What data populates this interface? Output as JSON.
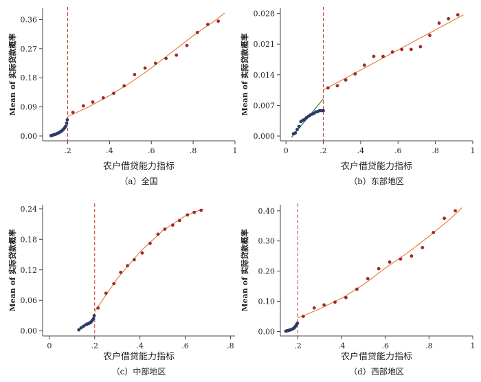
{
  "chart_data": [
    {
      "id": "a",
      "type": "scatter",
      "caption": "（a）全国",
      "xlabel": "农户借贷能力指标",
      "ylabel": "Mean of 实际贷款概率",
      "xlim": [
        0.08,
        1.0
      ],
      "ylim": [
        -0.015,
        0.395
      ],
      "xticks": [
        0.2,
        0.4,
        0.6,
        0.8,
        1.0
      ],
      "xtick_labels": [
        ".2",
        ".4",
        ".6",
        ".8",
        "1"
      ],
      "yticks": [
        0,
        0.09,
        0.18,
        0.27,
        0.36
      ],
      "ytick_labels": [
        "0.00",
        "0.09",
        "0.18",
        "0.27",
        "0.36"
      ],
      "cutoff": 0.2,
      "left_points": [
        [
          0.12,
          0.001
        ],
        [
          0.125,
          0.002
        ],
        [
          0.13,
          0.003
        ],
        [
          0.135,
          0.004
        ],
        [
          0.14,
          0.005
        ],
        [
          0.145,
          0.006
        ],
        [
          0.15,
          0.008
        ],
        [
          0.155,
          0.009
        ],
        [
          0.16,
          0.011
        ],
        [
          0.165,
          0.013
        ],
        [
          0.17,
          0.015
        ],
        [
          0.175,
          0.018
        ],
        [
          0.18,
          0.021
        ],
        [
          0.185,
          0.025
        ],
        [
          0.19,
          0.03
        ],
        [
          0.195,
          0.04
        ],
        [
          0.198,
          0.05
        ]
      ],
      "right_points": [
        [
          0.225,
          0.073
        ],
        [
          0.275,
          0.093
        ],
        [
          0.32,
          0.105
        ],
        [
          0.37,
          0.118
        ],
        [
          0.42,
          0.132
        ],
        [
          0.47,
          0.155
        ],
        [
          0.52,
          0.19
        ],
        [
          0.57,
          0.21
        ],
        [
          0.62,
          0.225
        ],
        [
          0.67,
          0.24
        ],
        [
          0.72,
          0.25
        ],
        [
          0.77,
          0.28
        ],
        [
          0.82,
          0.32
        ],
        [
          0.87,
          0.345
        ],
        [
          0.92,
          0.355
        ]
      ],
      "left_fit": [
        [
          0.12,
          0.0
        ],
        [
          0.16,
          0.012
        ],
        [
          0.2,
          0.04
        ]
      ],
      "right_fit": [
        [
          0.2,
          0.06
        ],
        [
          0.3,
          0.09
        ],
        [
          0.4,
          0.125
        ],
        [
          0.5,
          0.165
        ],
        [
          0.6,
          0.21
        ],
        [
          0.7,
          0.26
        ],
        [
          0.8,
          0.31
        ],
        [
          0.9,
          0.355
        ],
        [
          0.95,
          0.38
        ]
      ]
    },
    {
      "id": "b",
      "type": "scatter",
      "caption": "（b）东部地区",
      "xlabel": "农户借贷能力指标",
      "ylabel": "Mean of 实际贷款概率",
      "xlim": [
        -0.03,
        1.0
      ],
      "ylim": [
        -0.0011,
        0.0292
      ],
      "xticks": [
        0,
        0.2,
        0.4,
        0.6,
        0.8,
        1.0
      ],
      "xtick_labels": [
        "0",
        ".2",
        ".4",
        ".6",
        ".8",
        "1"
      ],
      "yticks": [
        0,
        0.007,
        0.014,
        0.021,
        0.028
      ],
      "ytick_labels": [
        "0.000",
        "0.007",
        "0.014",
        "0.021",
        "0.028"
      ],
      "cutoff": 0.2,
      "left_points": [
        [
          0.04,
          0.0005
        ],
        [
          0.05,
          0.0007
        ],
        [
          0.06,
          0.0015
        ],
        [
          0.07,
          0.0022
        ],
        [
          0.08,
          0.0033
        ],
        [
          0.09,
          0.0036
        ],
        [
          0.1,
          0.0038
        ],
        [
          0.11,
          0.0042
        ],
        [
          0.12,
          0.0045
        ],
        [
          0.13,
          0.0048
        ],
        [
          0.14,
          0.005
        ],
        [
          0.15,
          0.0052
        ],
        [
          0.16,
          0.0055
        ],
        [
          0.17,
          0.0056
        ],
        [
          0.18,
          0.0058
        ],
        [
          0.19,
          0.0058
        ],
        [
          0.2,
          0.0058
        ]
      ],
      "right_points": [
        [
          0.225,
          0.011
        ],
        [
          0.275,
          0.0115
        ],
        [
          0.32,
          0.0128
        ],
        [
          0.37,
          0.0142
        ],
        [
          0.42,
          0.0162
        ],
        [
          0.47,
          0.0182
        ],
        [
          0.52,
          0.0182
        ],
        [
          0.57,
          0.0192
        ],
        [
          0.62,
          0.0198
        ],
        [
          0.67,
          0.0198
        ],
        [
          0.72,
          0.0204
        ],
        [
          0.77,
          0.023
        ],
        [
          0.82,
          0.0258
        ],
        [
          0.87,
          0.0268
        ],
        [
          0.92,
          0.0277
        ]
      ],
      "left_fit": [
        [
          0.03,
          -0.0003
        ],
        [
          0.2,
          0.0085
        ]
      ],
      "right_fit": [
        [
          0.2,
          0.0105
        ],
        [
          0.95,
          0.0277
        ]
      ]
    },
    {
      "id": "c",
      "type": "scatter",
      "caption": "（c）中部地区",
      "xlabel": "农户借贷能力指标",
      "ylabel": "Mean of 实际贷款概率",
      "xlim": [
        -0.03,
        0.82
      ],
      "ylim": [
        -0.01,
        0.248
      ],
      "xticks": [
        0,
        0.2,
        0.4,
        0.6,
        0.8
      ],
      "xtick_labels": [
        "0",
        ".2",
        ".4",
        ".6",
        ".8"
      ],
      "yticks": [
        0,
        0.06,
        0.12,
        0.18,
        0.24
      ],
      "ytick_labels": [
        "0.00",
        "0.06",
        "0.12",
        "0.18",
        "0.24"
      ],
      "cutoff": 0.2,
      "left_points": [
        [
          0.13,
          0.002
        ],
        [
          0.14,
          0.006
        ],
        [
          0.15,
          0.009
        ],
        [
          0.16,
          0.012
        ],
        [
          0.165,
          0.013
        ],
        [
          0.17,
          0.014
        ],
        [
          0.175,
          0.015
        ],
        [
          0.18,
          0.016
        ],
        [
          0.185,
          0.018
        ],
        [
          0.19,
          0.021
        ],
        [
          0.195,
          0.024
        ],
        [
          0.198,
          0.03
        ]
      ],
      "right_points": [
        [
          0.215,
          0.045
        ],
        [
          0.25,
          0.074
        ],
        [
          0.285,
          0.093
        ],
        [
          0.315,
          0.115
        ],
        [
          0.345,
          0.128
        ],
        [
          0.375,
          0.14
        ],
        [
          0.41,
          0.153
        ],
        [
          0.445,
          0.172
        ],
        [
          0.48,
          0.19
        ],
        [
          0.51,
          0.2
        ],
        [
          0.545,
          0.208
        ],
        [
          0.575,
          0.217
        ],
        [
          0.61,
          0.228
        ],
        [
          0.64,
          0.233
        ],
        [
          0.67,
          0.237
        ]
      ],
      "left_fit": [
        [
          0.13,
          0.004
        ],
        [
          0.16,
          0.011
        ],
        [
          0.2,
          0.022
        ]
      ],
      "right_fit": [
        [
          0.2,
          0.038
        ],
        [
          0.3,
          0.103
        ],
        [
          0.4,
          0.155
        ],
        [
          0.5,
          0.197
        ],
        [
          0.6,
          0.226
        ],
        [
          0.68,
          0.24
        ]
      ]
    },
    {
      "id": "d",
      "type": "scatter",
      "caption": "（d）西部地区",
      "xlabel": "农户借贷能力指标",
      "ylabel": "Mean of 实际贷款概率",
      "xlim": [
        0.12,
        1.0
      ],
      "ylim": [
        -0.015,
        0.42
      ],
      "xticks": [
        0.2,
        0.4,
        0.6,
        0.8,
        1.0
      ],
      "xtick_labels": [
        ".2",
        ".4",
        ".6",
        ".8",
        "1"
      ],
      "yticks": [
        0,
        0.1,
        0.2,
        0.3,
        0.4
      ],
      "ytick_labels": [
        "0.00",
        "0.10",
        "0.20",
        "0.30",
        "0.40"
      ],
      "cutoff": 0.2,
      "left_points": [
        [
          0.145,
          0.001
        ],
        [
          0.15,
          0.002
        ],
        [
          0.155,
          0.003
        ],
        [
          0.16,
          0.004
        ],
        [
          0.165,
          0.005
        ],
        [
          0.17,
          0.006
        ],
        [
          0.175,
          0.008
        ],
        [
          0.18,
          0.01
        ],
        [
          0.185,
          0.013
        ],
        [
          0.19,
          0.018
        ],
        [
          0.195,
          0.024
        ],
        [
          0.198,
          0.027
        ]
      ],
      "right_points": [
        [
          0.225,
          0.05
        ],
        [
          0.275,
          0.078
        ],
        [
          0.32,
          0.088
        ],
        [
          0.37,
          0.097
        ],
        [
          0.42,
          0.112
        ],
        [
          0.47,
          0.14
        ],
        [
          0.52,
          0.175
        ],
        [
          0.57,
          0.208
        ],
        [
          0.62,
          0.23
        ],
        [
          0.67,
          0.24
        ],
        [
          0.72,
          0.25
        ],
        [
          0.77,
          0.278
        ],
        [
          0.82,
          0.328
        ],
        [
          0.87,
          0.375
        ],
        [
          0.92,
          0.4
        ]
      ],
      "left_fit": [
        [
          0.145,
          0.0
        ],
        [
          0.17,
          0.007
        ],
        [
          0.2,
          0.026
        ]
      ],
      "right_fit": [
        [
          0.2,
          0.045
        ],
        [
          0.3,
          0.075
        ],
        [
          0.4,
          0.11
        ],
        [
          0.5,
          0.155
        ],
        [
          0.6,
          0.21
        ],
        [
          0.7,
          0.26
        ],
        [
          0.8,
          0.315
        ],
        [
          0.9,
          0.375
        ],
        [
          0.95,
          0.41
        ]
      ]
    }
  ],
  "colors": {
    "left_point": "#2c3b66",
    "right_point": "#9e2a2b",
    "right_fit": "#e07a2f",
    "left_fit_a": "#e07a2f",
    "left_fit_b": "#2f6b3a",
    "cutoff_line": "#c0392b",
    "axis": "#444444"
  }
}
